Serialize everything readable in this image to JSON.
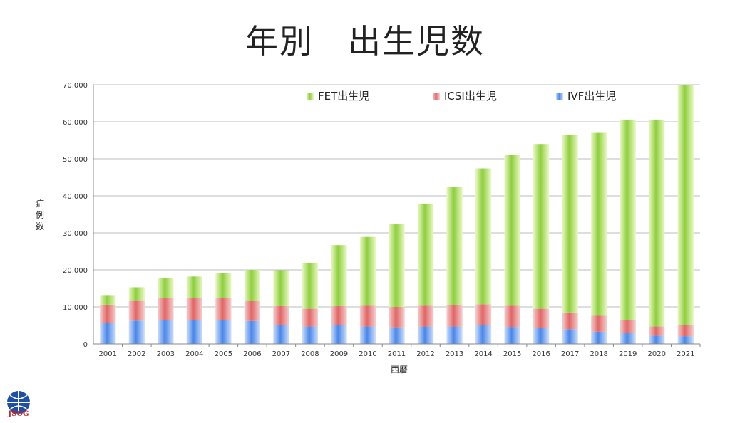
{
  "title": "年別　出生児数",
  "chart_data": {
    "type": "bar",
    "stacked": true,
    "ylabel": "症例数",
    "xlabel": "西暦",
    "ylim": [
      0,
      70000
    ],
    "yticks": [
      "0",
      "10,000",
      "20,000",
      "30,000",
      "40,000",
      "50,000",
      "60,000",
      "70,000"
    ],
    "grid": true,
    "legend_position": "top",
    "categories": [
      "2001",
      "2002",
      "2003",
      "2004",
      "2005",
      "2006",
      "2007",
      "2008",
      "2009",
      "2010",
      "2011",
      "2012",
      "2013",
      "2014",
      "2015",
      "2016",
      "2017",
      "2018",
      "2019",
      "2020",
      "2021"
    ],
    "series": [
      {
        "name": "IVF出生児",
        "color": "#4a86e8",
        "values": [
          5700,
          6300,
          6500,
          6500,
          6500,
          6200,
          5000,
          4700,
          5000,
          4700,
          4500,
          4700,
          4700,
          5000,
          4600,
          4300,
          4000,
          3300,
          2900,
          2200,
          2100
        ]
      },
      {
        "name": "ICSI出生児",
        "color": "#e06666",
        "values": [
          4900,
          5500,
          6000,
          6000,
          6000,
          5500,
          5200,
          4800,
          5200,
          5600,
          5500,
          5600,
          5700,
          5700,
          5700,
          5200,
          4500,
          4300,
          3600,
          2500,
          2900
        ]
      },
      {
        "name": "FET出生児",
        "color": "#8fce3f",
        "values": [
          2600,
          3500,
          5200,
          5700,
          6600,
          8300,
          9700,
          12400,
          16500,
          18600,
          22300,
          27600,
          32100,
          36700,
          40700,
          44500,
          48000,
          49400,
          54100,
          55900,
          65000
        ]
      }
    ],
    "legend_order": [
      "FET出生児",
      "ICSI出生児",
      "IVF出生児"
    ]
  },
  "logo": {
    "text": "JSOG"
  }
}
